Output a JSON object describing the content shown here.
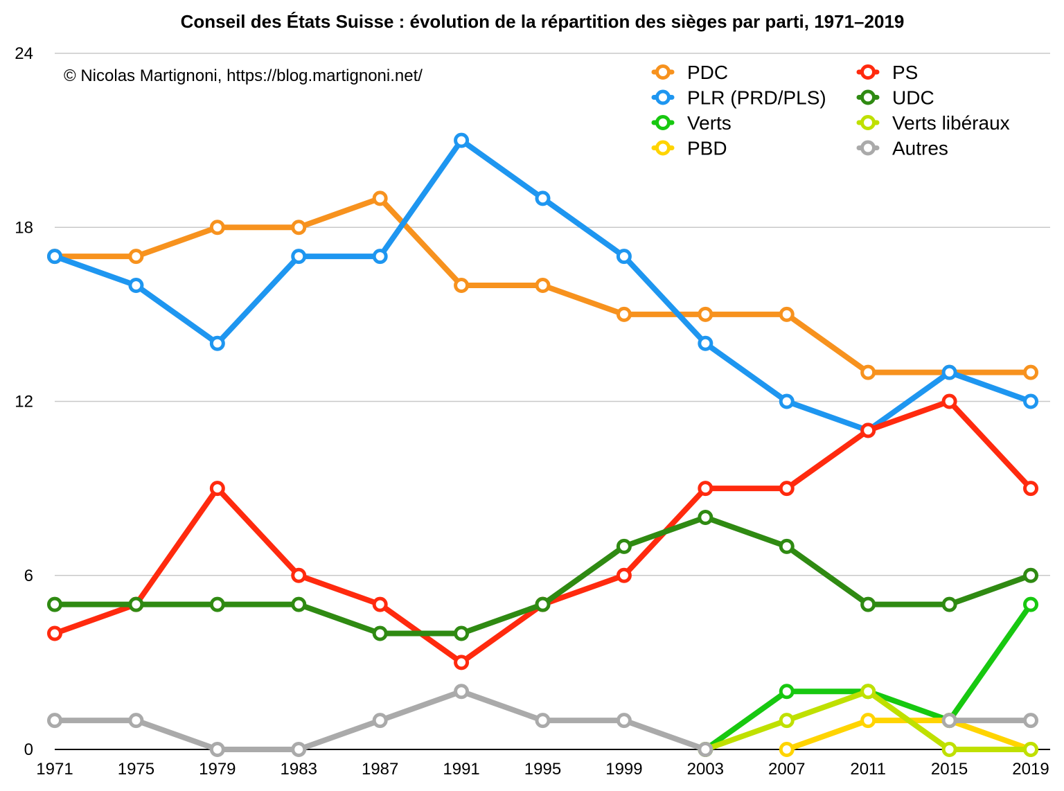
{
  "chart_data": {
    "type": "line",
    "title": "Conseil des États Suisse : évolution de la répartition des sièges par parti, 1971–2019",
    "credit": "© Nicolas Martignoni, https://blog.martignoni.net/",
    "x": [
      "1971",
      "1975",
      "1979",
      "1983",
      "1987",
      "1991",
      "1995",
      "1999",
      "2003",
      "2007",
      "2011",
      "2015",
      "2019"
    ],
    "ylim": [
      0,
      24
    ],
    "yticks": [
      "0",
      "6",
      "12",
      "18",
      "24"
    ],
    "grid": true,
    "legend_position": "top-right",
    "series": [
      {
        "name": "PDC",
        "color": "#f7921e",
        "values": [
          17,
          17,
          18,
          18,
          19,
          16,
          16,
          15,
          15,
          15,
          13,
          13,
          13
        ]
      },
      {
        "name": "PLR (PRD/PLS)",
        "color": "#1e96f0",
        "values": [
          17,
          16,
          14,
          17,
          17,
          21,
          19,
          17,
          14,
          12,
          11,
          13,
          12
        ]
      },
      {
        "name": "Verts",
        "color": "#17c810",
        "values": [
          null,
          null,
          null,
          null,
          null,
          null,
          null,
          null,
          0,
          2,
          2,
          1,
          5
        ]
      },
      {
        "name": "PBD",
        "color": "#ffd400",
        "values": [
          null,
          null,
          null,
          null,
          null,
          null,
          null,
          null,
          null,
          0,
          1,
          1,
          0
        ]
      },
      {
        "name": "PS",
        "color": "#ff2a0e",
        "values": [
          4,
          5,
          9,
          6,
          5,
          3,
          5,
          6,
          9,
          9,
          11,
          12,
          9
        ]
      },
      {
        "name": "UDC",
        "color": "#2f8a12",
        "values": [
          5,
          5,
          5,
          5,
          4,
          4,
          5,
          7,
          8,
          7,
          5,
          5,
          6
        ]
      },
      {
        "name": "Verts libéraux",
        "color": "#bfe000",
        "values": [
          null,
          null,
          null,
          null,
          null,
          null,
          null,
          null,
          0,
          1,
          2,
          0,
          0
        ]
      },
      {
        "name": "Autres",
        "color": "#aaaaaa",
        "values": [
          1,
          1,
          0,
          0,
          1,
          2,
          1,
          1,
          0,
          null,
          null,
          1,
          1
        ]
      }
    ]
  }
}
